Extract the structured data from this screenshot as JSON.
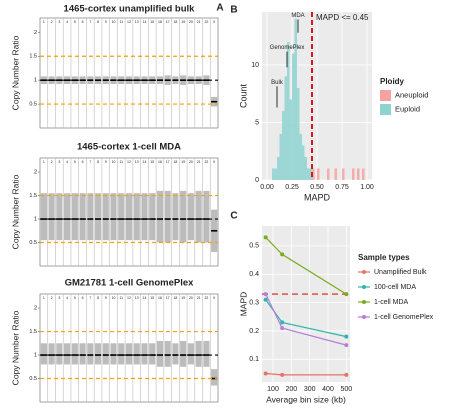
{
  "panel_labels": [
    "A",
    "B",
    "C"
  ],
  "chart_data": [
    {
      "type": "range",
      "title": "1465-cortex unamplified bulk",
      "ylabel": "Copy Number Ratio",
      "categories": [
        "1",
        "2",
        "3",
        "4",
        "5",
        "6",
        "7",
        "8",
        "9",
        "10",
        "11",
        "12",
        "13",
        "14",
        "15",
        "16",
        "17",
        "18",
        "19",
        "20",
        "21",
        "22",
        "X"
      ],
      "values": [
        1,
        1,
        1,
        1,
        1,
        1,
        1,
        1,
        1,
        1,
        1,
        1,
        1,
        1,
        1,
        1,
        1,
        1,
        1,
        1,
        1,
        1,
        0.55
      ],
      "low": [
        0.92,
        0.92,
        0.92,
        0.92,
        0.92,
        0.92,
        0.92,
        0.92,
        0.92,
        0.92,
        0.92,
        0.92,
        0.92,
        0.92,
        0.92,
        0.92,
        0.9,
        0.92,
        0.9,
        0.92,
        0.92,
        0.9,
        0.45
      ],
      "high": [
        1.08,
        1.08,
        1.08,
        1.08,
        1.08,
        1.08,
        1.08,
        1.08,
        1.08,
        1.08,
        1.08,
        1.08,
        1.08,
        1.08,
        1.08,
        1.08,
        1.1,
        1.08,
        1.1,
        1.08,
        1.08,
        1.1,
        0.65
      ],
      "ylim": [
        0,
        2.3
      ],
      "yticks": [
        0.5,
        1,
        1.5,
        2
      ],
      "hlines": [
        {
          "value": 0.5,
          "color": "#f0a30a"
        },
        {
          "value": 1,
          "color": "#000000"
        },
        {
          "value": 1.5,
          "color": "#f0a30a"
        }
      ]
    },
    {
      "type": "range",
      "title": "1465-cortex 1-cell MDA",
      "ylabel": "Copy Number Ratio",
      "categories": [
        "1",
        "2",
        "3",
        "4",
        "5",
        "6",
        "7",
        "8",
        "9",
        "10",
        "11",
        "12",
        "13",
        "14",
        "15",
        "16",
        "17",
        "18",
        "19",
        "20",
        "21",
        "22",
        "X"
      ],
      "values": [
        1,
        1,
        1,
        1,
        1,
        1,
        1,
        1,
        1,
        1,
        1,
        1,
        1,
        1,
        1,
        1,
        1,
        1,
        1,
        1,
        1,
        1,
        0.75
      ],
      "low": [
        0.55,
        0.55,
        0.55,
        0.55,
        0.55,
        0.55,
        0.55,
        0.55,
        0.55,
        0.55,
        0.55,
        0.55,
        0.55,
        0.55,
        0.55,
        0.5,
        0.5,
        0.55,
        0.5,
        0.55,
        0.5,
        0.5,
        0.3
      ],
      "high": [
        1.55,
        1.55,
        1.55,
        1.55,
        1.55,
        1.55,
        1.55,
        1.55,
        1.55,
        1.55,
        1.55,
        1.55,
        1.55,
        1.55,
        1.55,
        1.6,
        1.6,
        1.55,
        1.6,
        1.55,
        1.6,
        1.6,
        1.2
      ],
      "ylim": [
        0,
        2.3
      ],
      "yticks": [
        0.5,
        1,
        1.5,
        2
      ],
      "hlines": [
        {
          "value": 0.5,
          "color": "#f0a30a"
        },
        {
          "value": 1,
          "color": "#000000"
        },
        {
          "value": 1.5,
          "color": "#f0a30a"
        }
      ]
    },
    {
      "type": "range",
      "title": "GM21781 1-cell GenomePlex",
      "ylabel": "Copy Number Ratio",
      "categories": [
        "1",
        "2",
        "3",
        "4",
        "5",
        "6",
        "7",
        "8",
        "9",
        "10",
        "11",
        "12",
        "13",
        "14",
        "15",
        "16",
        "17",
        "18",
        "19",
        "20",
        "21",
        "22",
        "X"
      ],
      "values": [
        1,
        1,
        1,
        1,
        1,
        1,
        1,
        1,
        1,
        1,
        1,
        1,
        1,
        1,
        1,
        1,
        1,
        1,
        1,
        1,
        1,
        1,
        0.5
      ],
      "low": [
        0.8,
        0.8,
        0.8,
        0.8,
        0.8,
        0.8,
        0.8,
        0.8,
        0.8,
        0.8,
        0.8,
        0.8,
        0.8,
        0.8,
        0.8,
        0.75,
        0.75,
        0.8,
        0.75,
        0.8,
        0.75,
        0.75,
        0.35
      ],
      "high": [
        1.25,
        1.25,
        1.25,
        1.25,
        1.25,
        1.25,
        1.25,
        1.25,
        1.25,
        1.25,
        1.25,
        1.25,
        1.25,
        1.25,
        1.25,
        1.3,
        1.3,
        1.25,
        1.3,
        1.25,
        1.3,
        1.3,
        0.7
      ],
      "ylim": [
        0,
        2.3
      ],
      "yticks": [
        0.5,
        1,
        1.5,
        2
      ],
      "hlines": [
        {
          "value": 0.5,
          "color": "#f0a30a"
        },
        {
          "value": 1,
          "color": "#000000"
        },
        {
          "value": 1.5,
          "color": "#f0a30a"
        }
      ]
    },
    {
      "type": "histogram",
      "xlabel": "MAPD",
      "ylabel": "Count",
      "bins": [
        0,
        0.025,
        0.05,
        0.075,
        0.1,
        0.125,
        0.15,
        0.175,
        0.2,
        0.225,
        0.25,
        0.275,
        0.3,
        0.325,
        0.35,
        0.375,
        0.4,
        0.425,
        0.45,
        0.475,
        0.5,
        0.525,
        0.55,
        0.575,
        0.6,
        0.625,
        0.65,
        0.675,
        0.7,
        0.725,
        0.75,
        0.775,
        0.8,
        0.825,
        0.85,
        0.875,
        0.9,
        0.925,
        0.95,
        0.975,
        1
      ],
      "series": [
        {
          "name": "Aneuploid",
          "color": "#f4a3a0",
          "values": [
            0,
            0,
            0,
            0,
            0,
            0,
            0,
            0,
            0,
            0,
            0,
            0,
            0,
            0,
            0,
            0,
            0,
            0,
            1,
            0,
            1,
            0,
            0,
            0,
            1,
            0,
            0,
            1,
            0,
            0,
            1,
            0,
            0,
            0,
            1,
            0,
            1,
            0,
            1,
            0
          ]
        },
        {
          "name": "Euploid",
          "color": "#8fd3d1",
          "values": [
            0,
            0,
            1,
            1,
            2,
            4,
            6,
            9,
            12,
            7,
            11,
            14,
            8,
            4,
            3,
            2,
            1,
            1,
            0,
            0,
            0,
            0,
            0,
            0,
            0,
            0,
            0,
            0,
            0,
            0,
            0,
            0,
            0,
            0,
            0,
            0,
            0,
            0,
            0,
            0
          ]
        }
      ],
      "xlim": [
        -0.05,
        1.05
      ],
      "ylim": [
        0,
        14.6
      ],
      "xticks": [
        {
          "value": 0,
          "label": "0.00"
        },
        {
          "value": 0.25,
          "label": "0.25"
        },
        {
          "value": 0.5,
          "label": "0.50"
        },
        {
          "value": 0.75,
          "label": "0.75"
        },
        {
          "value": 1,
          "label": "1.00"
        }
      ],
      "yticks": [
        0,
        5,
        10
      ],
      "vline": 0.45,
      "vline_label": "MAPD <= 0.45",
      "annotations": [
        "Bulk",
        "GenomePlex",
        "MDA"
      ],
      "legend_title": "Ploidy",
      "grid": true
    },
    {
      "type": "line",
      "xlabel": "Average bin size (kb)",
      "ylabel": "MAPD",
      "x": [
        60,
        150,
        500
      ],
      "series": [
        {
          "name": "Unamplified Bulk",
          "color": "#e8716b",
          "values": [
            0.05,
            0.045,
            0.045
          ]
        },
        {
          "name": "100-cell MDA",
          "color": "#2fb5ae",
          "values": [
            0.31,
            0.23,
            0.18
          ]
        },
        {
          "name": "1-cell MDA",
          "color": "#78ac1c",
          "values": [
            0.53,
            0.47,
            0.33
          ]
        },
        {
          "name": "1-cell GenomePlex",
          "color": "#b57ddd",
          "values": [
            0.33,
            0.21,
            0.15
          ]
        }
      ],
      "xlim": [
        40,
        520
      ],
      "ylim": [
        0.02,
        0.57
      ],
      "xticks": [
        100,
        200,
        300,
        400,
        500
      ],
      "yticks": [
        0.1,
        0.2,
        0.3,
        0.4,
        0.5
      ],
      "hline": 0.33,
      "legend_title": "Sample types",
      "grid": true
    }
  ]
}
